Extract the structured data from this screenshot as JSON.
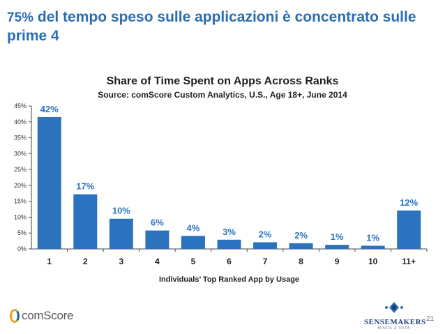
{
  "slide": {
    "title_pct": "75%",
    "title_text": " del tempo speso sulle applicazioni è concentrato sulle prime 4",
    "page_number": "21"
  },
  "logos": {
    "left_name": "comScore",
    "right_name": "SENSEMAKERS",
    "right_tagline": "MINDS & DATA"
  },
  "colors": {
    "bar": "#2b73be",
    "data_label": "#2b73be",
    "axis": "#444444"
  },
  "chart_data": {
    "type": "bar",
    "title": "Share of Time Spent on Apps Across Ranks",
    "subtitle": "Source: comScore Custom Analytics, U.S., Age 18+, June 2014",
    "xlabel": "Individuals’ Top Ranked App by Usage",
    "ylabel": "",
    "categories": [
      "1",
      "2",
      "3",
      "4",
      "5",
      "6",
      "7",
      "8",
      "9",
      "10",
      "11+"
    ],
    "values": [
      41.5,
      17.2,
      9.5,
      5.8,
      4.1,
      2.9,
      2.1,
      1.8,
      1.3,
      1.0,
      12.1
    ],
    "data_labels": [
      "42%",
      "17%",
      "10%",
      "6%",
      "4%",
      "3%",
      "2%",
      "2%",
      "1%",
      "1%",
      "12%"
    ],
    "ylim": [
      0,
      45
    ],
    "yticks": [
      0,
      5,
      10,
      15,
      20,
      25,
      30,
      35,
      40,
      45
    ],
    "ytick_labels": [
      "0%",
      "5%",
      "10%",
      "15%",
      "20%",
      "25%",
      "30%",
      "35%",
      "40%",
      "45%"
    ],
    "grid": false,
    "legend": "none"
  }
}
